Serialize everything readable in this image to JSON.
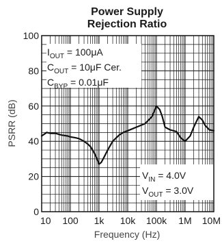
{
  "chart_data": {
    "type": "line",
    "title_lines": [
      "Power Supply",
      "Rejection Ratio"
    ],
    "xlabel": "Frequency (Hz)",
    "ylabel": "PSRR (dB)",
    "x_scale": "log",
    "xlim": [
      10,
      10000000
    ],
    "ylim": [
      0,
      100
    ],
    "grid": true,
    "x_ticks": [
      {
        "value": 10,
        "label": "10"
      },
      {
        "value": 100,
        "label": "100"
      },
      {
        "value": 1000,
        "label": "1k"
      },
      {
        "value": 10000,
        "label": "10k"
      },
      {
        "value": 100000,
        "label": "100k"
      },
      {
        "value": 1000000,
        "label": "1M"
      },
      {
        "value": 10000000,
        "label": "10M"
      }
    ],
    "y_ticks": [
      {
        "value": 0,
        "label": "0"
      },
      {
        "value": 20,
        "label": "20"
      },
      {
        "value": 40,
        "label": "40"
      },
      {
        "value": 60,
        "label": "60"
      },
      {
        "value": 80,
        "label": "80"
      },
      {
        "value": 100,
        "label": "100"
      }
    ],
    "series": [
      {
        "x": [
          10,
          15,
          20,
          30,
          50,
          80,
          100,
          150,
          200,
          300,
          400,
          500,
          700,
          900,
          1000,
          1200,
          1500,
          2000,
          3000,
          5000,
          7000,
          10000,
          20000,
          40000,
          70000,
          100000,
          130000,
          160000,
          200000,
          300000,
          500000,
          700000,
          1000000,
          1500000,
          2000000,
          3000000,
          4000000,
          5000000,
          7000000,
          10000000
        ],
        "y": [
          43,
          45,
          44.5,
          44.5,
          43.5,
          43,
          42.5,
          42,
          41.5,
          40,
          38.5,
          37,
          33,
          29,
          27,
          28,
          31,
          35,
          40,
          43.5,
          45,
          46,
          48,
          50,
          54,
          60,
          58,
          54,
          48,
          46.5,
          45.5,
          42,
          40,
          43,
          48,
          54,
          52,
          49,
          46.5,
          46
        ]
      }
    ],
    "annotations": {
      "top_left": [
        {
          "main": "I",
          "sub": "OUT",
          "rest": " = 100μA"
        },
        {
          "main": "C",
          "sub": "OUT",
          "rest": " = 10μF Cer."
        },
        {
          "main": "C",
          "sub": "BYP",
          "rest": " = 0.01μF"
        }
      ],
      "bottom_right": [
        {
          "main": "V",
          "sub": "IN",
          "rest": " = 4.0V"
        },
        {
          "main": "V",
          "sub": "OUT",
          "rest": " = 3.0V"
        }
      ]
    },
    "colors": {
      "line": "#111111",
      "grid": "#111111",
      "frame": "#111111",
      "text": "#1a1a1a",
      "axis_label": "#444444"
    }
  }
}
